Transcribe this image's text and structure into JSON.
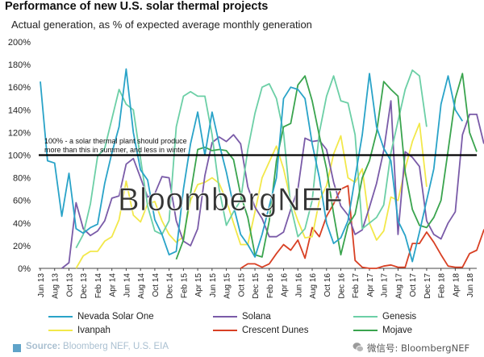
{
  "chart_data": {
    "type": "line",
    "title": "Performance of new U.S. solar thermal projects",
    "subtitle": "Actual generation, as % of expected average monthly generation",
    "xlabel": "",
    "ylabel": "",
    "ylim": [
      0,
      200
    ],
    "y_tick_values": [
      0,
      20,
      40,
      60,
      80,
      100,
      120,
      140,
      160,
      180,
      200
    ],
    "y_tick_labels": [
      "0%",
      "20%",
      "40%",
      "60%",
      "80%",
      "100%",
      "120%",
      "140%",
      "160%",
      "180%",
      "200%"
    ],
    "x_months": [
      "Jun 13",
      "Jul 13",
      "Aug 13",
      "Sep 13",
      "Oct 13",
      "Nov 13",
      "Dec 13",
      "Jan 14",
      "Feb 14",
      "Mar 14",
      "Apr 14",
      "May 14",
      "Jun 14",
      "Jul 14",
      "Aug 14",
      "Sep 14",
      "Oct 14",
      "Nov 14",
      "Dec 14",
      "Jan 15",
      "Feb 15",
      "Mar 15",
      "Apr 15",
      "May 15",
      "Jun 15",
      "Jul 15",
      "Aug 15",
      "Sep 15",
      "Oct 15",
      "Nov 15",
      "Dec 15",
      "Jan 16",
      "Feb 16",
      "Mar 16",
      "Apr 16",
      "May 16",
      "Jun 16",
      "Jul 16",
      "Aug 16",
      "Sep 16",
      "Oct 16",
      "Nov 16",
      "Dec 16",
      "Jan 17",
      "Feb 17",
      "Mar 17",
      "Apr 17",
      "May 17",
      "Jun 17",
      "Jul 17",
      "Aug 17",
      "Sep 17",
      "Oct 17",
      "Nov 17",
      "Dec 17",
      "Jan 18",
      "Feb 18",
      "Mar 18",
      "Apr 18",
      "May 18",
      "Jun 18",
      "Jul 18"
    ],
    "x_tick_labels": [
      "Jun 13",
      "Aug 13",
      "Oct 13",
      "Dec 13",
      "Feb 14",
      "Apr 14",
      "Jun 14",
      "Aug 14",
      "Oct 14",
      "Dec 14",
      "Feb 15",
      "Apr 15",
      "Jun 15",
      "Aug 15",
      "Oct 15",
      "Dec 15",
      "Feb 16",
      "Apr 16",
      "Jun 16",
      "Aug 16",
      "Oct 16",
      "Dec 16",
      "Feb 17",
      "Apr 17",
      "Jun 17",
      "Aug 17",
      "Oct 17",
      "Dec 17",
      "Feb 18",
      "Apr 18",
      "Jun 18"
    ],
    "reference_line": {
      "value": 100,
      "label": "100% - a solar thermal plant should produce more than this in summer, and less in winter"
    },
    "grid": false,
    "series": [
      {
        "name": "Nevada Solar One",
        "color": "#29a3c8",
        "start_index": 0,
        "values": [
          165,
          95,
          93,
          46,
          84,
          35,
          31,
          36,
          39,
          75,
          102,
          125,
          176,
          120,
          87,
          78,
          43,
          30,
          12,
          15,
          70,
          110,
          138,
          100,
          138,
          110,
          85,
          55,
          30,
          21,
          10,
          30,
          55,
          80,
          150,
          160,
          158,
          150,
          110,
          80,
          40,
          22,
          27,
          42,
          80,
          118,
          172,
          125,
          106,
          95,
          42,
          29,
          6,
          32,
          60,
          88,
          145,
          170,
          140,
          130
        ]
      },
      {
        "name": "Solana",
        "color": "#7a5ba8",
        "start_index": 3,
        "values": [
          0,
          5,
          58,
          35,
          29,
          33,
          42,
          62,
          64,
          92,
          97,
          80,
          63,
          66,
          81,
          80,
          42,
          24,
          20,
          35,
          82,
          111,
          116,
          112,
          118,
          110,
          72,
          54,
          44,
          28,
          28,
          32,
          52,
          70,
          115,
          112,
          113,
          105,
          76,
          55,
          47,
          30,
          34,
          54,
          75,
          104,
          148,
          30,
          103,
          98,
          90,
          42,
          30,
          26,
          40,
          50,
          118,
          136,
          136,
          110
        ]
      },
      {
        "name": "Genesis",
        "color": "#6ccfa6",
        "start_index": 5,
        "values": [
          18,
          30,
          57,
          99,
          106,
          132,
          158,
          145,
          140,
          97,
          55,
          33,
          30,
          42,
          125,
          152,
          156,
          152,
          152,
          118,
          70,
          38,
          50,
          60,
          105,
          137,
          160,
          163,
          150,
          120,
          55,
          28,
          35,
          60,
          120,
          152,
          170,
          148,
          146,
          118,
          35,
          40,
          45,
          56,
          102,
          130,
          158,
          175,
          170,
          125
        ]
      },
      {
        "name": "Ivanpah",
        "color": "#f2e84a",
        "start_index": 5,
        "values": [
          0,
          11,
          15,
          15,
          24,
          28,
          43,
          77,
          47,
          41,
          57,
          59,
          42,
          30,
          23,
          28,
          60,
          74,
          76,
          80,
          75,
          60,
          40,
          21,
          21,
          50,
          80,
          94,
          108,
          88,
          60,
          42,
          27,
          28,
          60,
          73,
          101,
          117,
          80,
          76,
          88,
          40,
          25,
          33,
          63,
          60,
          88,
          112,
          128,
          72
        ]
      },
      {
        "name": "Crescent Dunes",
        "color": "#d84024",
        "start_index": 28,
        "values": [
          0,
          4,
          4,
          1,
          4,
          13,
          21,
          16,
          25,
          9,
          36,
          28,
          46,
          57,
          70,
          73,
          7,
          1,
          0,
          0,
          2,
          3,
          1,
          1,
          22,
          22,
          32,
          23,
          12,
          2,
          1,
          1,
          13,
          16,
          34,
          24,
          81,
          57
        ]
      },
      {
        "name": "Mojave",
        "color": "#3aa44e",
        "start_index": 19,
        "values": [
          8,
          25,
          66,
          105,
          107,
          104,
          105,
          104,
          96,
          65,
          45,
          12,
          10,
          42,
          95,
          125,
          128,
          162,
          170,
          148,
          117,
          88,
          48,
          12,
          38,
          48,
          80,
          95,
          120,
          165,
          158,
          152,
          85,
          52,
          38,
          36,
          45,
          60,
          104,
          150,
          172,
          120,
          103
        ]
      }
    ]
  },
  "watermark": {
    "text": "BloombergNEF"
  },
  "footer": {
    "source_label": "Source:",
    "source_text": " Bloomberg NEF, U.S. EIA",
    "wechat_text": "微信号: BloombergNEF"
  }
}
